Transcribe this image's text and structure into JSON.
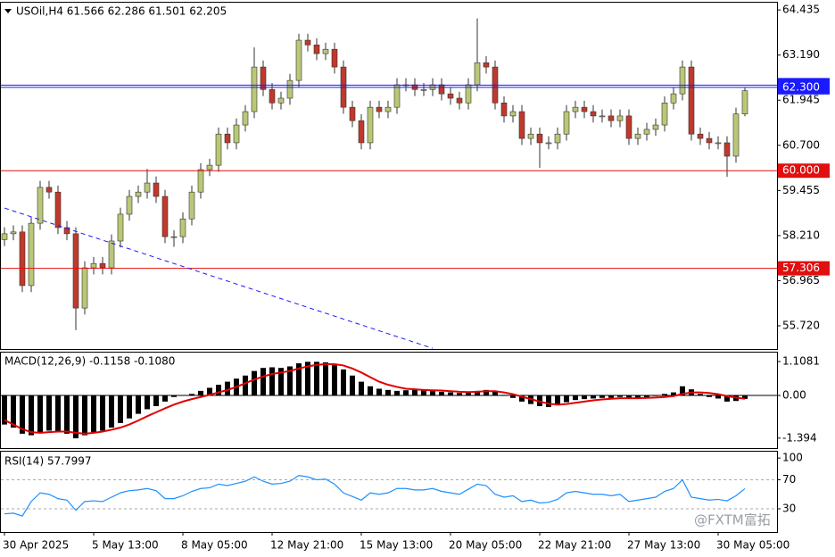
{
  "chart_data": [
    {
      "type": "candle",
      "title": "USOil,H4 61.566 62.286 61.501 62.205",
      "categories": [
        "30 Apr 2025",
        null,
        null,
        null,
        null,
        null,
        null,
        null,
        null,
        null,
        "5 May 13:00",
        null,
        null,
        null,
        null,
        null,
        null,
        null,
        null,
        null,
        "8 May 05:00",
        null,
        null,
        null,
        null,
        null,
        null,
        null,
        null,
        null,
        "12 May 21:00",
        null,
        null,
        null,
        null,
        null,
        null,
        null,
        null,
        null,
        "15 May 13:00",
        null,
        null,
        null,
        null,
        null,
        null,
        null,
        null,
        null,
        "20 May 05:00",
        null,
        null,
        null,
        null,
        null,
        null,
        null,
        null,
        null,
        "22 May 21:00",
        null,
        null,
        null,
        null,
        null,
        null,
        null,
        null,
        null,
        "27 May 13:00",
        null,
        null,
        null,
        null,
        null,
        null,
        null,
        null,
        null,
        "30 May 05:00",
        null,
        null,
        null
      ],
      "open": [
        58.1,
        58.26,
        58.31,
        56.83,
        58.55,
        59.54,
        59.41,
        58.43,
        58.26,
        56.21,
        57.32,
        57.44,
        57.32,
        58.06,
        58.8,
        59.29,
        59.41,
        59.66,
        59.29,
        58.18,
        58.18,
        58.67,
        59.41,
        60.03,
        60.15,
        61.01,
        60.77,
        61.26,
        61.63,
        62.86,
        62.24,
        61.87,
        62.0,
        62.49,
        63.6,
        63.47,
        63.23,
        63.35,
        62.86,
        61.75,
        61.38,
        60.77,
        61.75,
        61.63,
        61.75,
        62.37,
        62.37,
        62.24,
        62.24,
        62.37,
        62.12,
        62.0,
        61.87,
        62.37,
        62.98,
        62.86,
        61.87,
        61.51,
        61.63,
        60.89,
        61.01,
        60.77,
        60.77,
        61.01,
        61.63,
        61.75,
        61.63,
        61.51,
        61.51,
        61.38,
        61.51,
        60.89,
        61.01,
        61.14,
        61.26,
        61.87,
        62.12,
        62.86,
        61.01,
        60.89,
        60.77,
        60.77,
        60.4,
        61.566
      ],
      "high": [
        58.44,
        58.49,
        58.49,
        58.73,
        59.72,
        59.72,
        59.59,
        58.61,
        58.44,
        57.5,
        57.62,
        57.62,
        58.24,
        58.98,
        59.47,
        59.59,
        60.05,
        59.84,
        59.47,
        58.36,
        58.85,
        59.59,
        60.21,
        60.33,
        61.19,
        61.19,
        61.44,
        61.81,
        63.4,
        63.04,
        62.42,
        62.18,
        62.67,
        63.78,
        63.78,
        63.65,
        63.53,
        63.53,
        63.04,
        61.93,
        61.56,
        61.93,
        61.93,
        61.93,
        62.55,
        62.55,
        62.55,
        62.42,
        62.55,
        62.55,
        62.3,
        62.18,
        62.55,
        64.2,
        63.16,
        63.04,
        62.05,
        61.81,
        61.81,
        61.19,
        61.19,
        60.95,
        61.19,
        61.81,
        61.93,
        61.93,
        61.81,
        61.69,
        61.69,
        61.69,
        61.69,
        61.19,
        61.32,
        61.44,
        62.05,
        62.3,
        63.04,
        63.04,
        61.19,
        61.07,
        60.95,
        60.95,
        61.74,
        62.286
      ],
      "low": [
        57.92,
        58.08,
        56.65,
        56.65,
        58.37,
        59.23,
        58.25,
        58.08,
        55.6,
        56.03,
        57.14,
        57.14,
        57.14,
        57.88,
        58.62,
        59.11,
        59.23,
        59.11,
        58.0,
        57.9,
        58.0,
        58.49,
        59.23,
        59.85,
        59.97,
        60.59,
        60.59,
        61.08,
        61.45,
        62.06,
        61.69,
        61.69,
        61.82,
        62.31,
        63.29,
        63.05,
        63.05,
        62.68,
        61.57,
        61.2,
        60.59,
        60.59,
        61.45,
        61.45,
        61.57,
        62.19,
        62.06,
        62.06,
        62.06,
        61.94,
        61.82,
        61.69,
        61.69,
        62.19,
        62.68,
        61.69,
        61.33,
        61.33,
        60.71,
        60.71,
        60.08,
        60.59,
        60.59,
        60.83,
        61.45,
        61.45,
        61.33,
        61.33,
        61.2,
        61.2,
        60.71,
        60.71,
        60.83,
        60.96,
        61.08,
        61.69,
        61.94,
        60.83,
        60.71,
        60.59,
        60.59,
        59.83,
        60.22,
        61.501
      ],
      "close": [
        58.26,
        58.31,
        56.83,
        58.55,
        59.54,
        59.41,
        58.43,
        58.26,
        56.21,
        57.32,
        57.44,
        57.32,
        58.06,
        58.8,
        59.29,
        59.41,
        59.66,
        59.29,
        58.18,
        58.18,
        58.67,
        59.41,
        60.03,
        60.15,
        61.01,
        60.77,
        61.26,
        61.63,
        62.86,
        62.24,
        61.87,
        62.0,
        62.49,
        63.6,
        63.47,
        63.23,
        63.35,
        62.86,
        61.75,
        61.38,
        60.77,
        61.75,
        61.63,
        61.75,
        62.37,
        62.37,
        62.24,
        62.24,
        62.37,
        62.12,
        62.0,
        61.87,
        62.37,
        62.98,
        62.86,
        61.87,
        61.51,
        61.63,
        60.89,
        61.01,
        60.77,
        60.77,
        61.01,
        61.63,
        61.75,
        61.63,
        61.51,
        61.51,
        61.38,
        61.51,
        60.89,
        61.01,
        61.14,
        61.26,
        61.87,
        62.12,
        62.86,
        61.01,
        60.89,
        60.77,
        60.77,
        60.4,
        61.566,
        62.205
      ],
      "bull_color": "#b9c877",
      "bear_color": "#c0392b",
      "ylim": [
        55.08,
        64.66
      ],
      "yticks": [
        64.435,
        {
          "value": 63.19,
          "label": "63.190"
        },
        61.945,
        {
          "value": 60.7,
          "label": "60.700"
        },
        59.455,
        {
          "value": 58.21,
          "label": "58.210"
        },
        56.965,
        {
          "value": 55.72,
          "label": "55.720"
        }
      ],
      "levels": [
        {
          "value": 62.36,
          "color": "#1a1aff"
        },
        {
          "value": 62.3,
          "label": "62.300",
          "color": "#1a1aff"
        },
        {
          "value": 60,
          "label": "60.000",
          "color": "#e01010"
        },
        {
          "value": 57.306,
          "color": "#e01010"
        }
      ],
      "trendline": {
        "x": [
          0,
          48
        ],
        "values": [
          58.97,
          55.1
        ],
        "color": "#1a1aff"
      },
      "watermark": "@FXTM富拓"
    },
    {
      "type": "macd",
      "title": "MACD(12,26,9) -0.1158 -0.1080",
      "series": [
        {
          "color": "#000000",
          "values": [
            -0.95,
            -1.05,
            -1.25,
            -1.3,
            -1.2,
            -1.15,
            -1.2,
            -1.25,
            -1.4,
            -1.3,
            -1.2,
            -1.15,
            -1.05,
            -0.9,
            -0.75,
            -0.6,
            -0.45,
            -0.35,
            -0.2,
            -0.05,
            0.0,
            0.05,
            0.15,
            0.25,
            0.35,
            0.45,
            0.55,
            0.65,
            0.8,
            0.9,
            0.92,
            0.9,
            0.95,
            1.05,
            1.1,
            1.1,
            1.08,
            1.0,
            0.85,
            0.65,
            0.45,
            0.3,
            0.22,
            0.18,
            0.15,
            0.17,
            0.18,
            0.18,
            0.15,
            0.12,
            0.1,
            0.08,
            0.1,
            0.15,
            0.18,
            0.12,
            0.02,
            -0.08,
            -0.2,
            -0.28,
            -0.35,
            -0.38,
            -0.3,
            -0.22,
            -0.15,
            -0.12,
            -0.1,
            -0.08,
            -0.08,
            -0.05,
            -0.1,
            -0.08,
            -0.06,
            -0.02,
            0.05,
            0.1,
            0.3,
            0.2,
            0.05,
            -0.05,
            -0.1,
            -0.2,
            -0.18,
            -0.1158
          ]
        },
        {
          "color": "#e00000",
          "values": [
            -0.8,
            -0.95,
            -1.1,
            -1.2,
            -1.22,
            -1.2,
            -1.18,
            -1.18,
            -1.22,
            -1.25,
            -1.22,
            -1.18,
            -1.12,
            -1.05,
            -0.95,
            -0.82,
            -0.68,
            -0.55,
            -0.42,
            -0.3,
            -0.2,
            -0.12,
            -0.05,
            0.02,
            0.1,
            0.18,
            0.28,
            0.4,
            0.52,
            0.62,
            0.7,
            0.75,
            0.8,
            0.88,
            0.95,
            1.0,
            1.02,
            1.02,
            0.98,
            0.88,
            0.75,
            0.6,
            0.45,
            0.35,
            0.28,
            0.22,
            0.2,
            0.18,
            0.17,
            0.16,
            0.14,
            0.12,
            0.11,
            0.12,
            0.14,
            0.14,
            0.1,
            0.04,
            -0.04,
            -0.12,
            -0.2,
            -0.27,
            -0.3,
            -0.28,
            -0.24,
            -0.2,
            -0.16,
            -0.13,
            -0.11,
            -0.09,
            -0.09,
            -0.09,
            -0.08,
            -0.07,
            -0.05,
            -0.02,
            0.05,
            0.1,
            0.1,
            0.08,
            0.04,
            -0.02,
            -0.07,
            -0.108
          ]
        }
      ],
      "ylim": [
        -1.72,
        1.43
      ],
      "yticks": [
        1.1081,
        {
          "value": 0,
          "label": "0.00"
        },
        -1.394
      ]
    },
    {
      "type": "line",
      "title": "RSI(14) 57.7997",
      "color": "#1e90ff",
      "values": [
        23,
        24,
        20,
        40,
        52,
        50,
        44,
        42,
        28,
        40,
        41,
        40,
        46,
        52,
        55,
        56,
        58,
        55,
        44,
        44,
        48,
        54,
        58,
        59,
        64,
        62,
        65,
        68,
        74,
        68,
        64,
        65,
        68,
        76,
        74,
        70,
        71,
        64,
        52,
        47,
        42,
        52,
        50,
        52,
        58,
        58,
        56,
        56,
        58,
        54,
        52,
        50,
        57,
        64,
        62,
        50,
        46,
        48,
        40,
        42,
        38,
        39,
        43,
        52,
        54,
        52,
        50,
        50,
        48,
        50,
        40,
        42,
        44,
        46,
        54,
        58,
        70,
        46,
        44,
        42,
        43,
        41,
        48,
        57.7997
      ],
      "ylim": [
        -2,
        110
      ],
      "yticks": [
        100,
        70,
        30
      ],
      "levels": [
        70,
        30
      ]
    }
  ]
}
